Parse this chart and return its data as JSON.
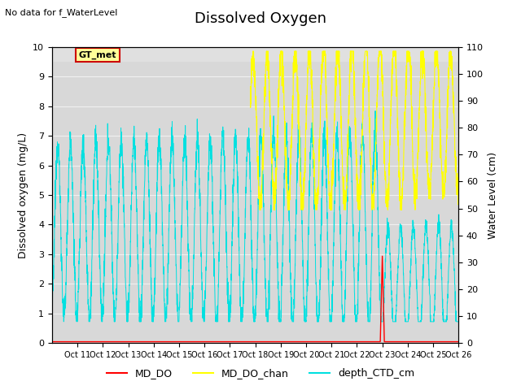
{
  "title": "Dissolved Oxygen",
  "subtitle": "No data for f_WaterLevel",
  "ylabel_left": "Dissolved oxygen (mg/L)",
  "ylabel_right": "Water Level (cm)",
  "ylim_left": [
    0.0,
    10.0
  ],
  "ylim_right": [
    0,
    110
  ],
  "color_MD_DO": "#ff0000",
  "color_MD_DO_chan": "#ffff00",
  "color_depth_CTD": "#00e0e0",
  "box_label": "GT_met",
  "box_facecolor": "#ffff99",
  "box_edgecolor": "#cc0000",
  "plot_bg_color": "#d8d8d8",
  "grid_color": "#f0f0f0",
  "title_fontsize": 13,
  "label_fontsize": 9,
  "tick_fontsize": 8,
  "xtick_labels": [
    "Oct 11",
    "Oct 12",
    "Oct 13",
    "Oct 14",
    "Oct 15",
    "Oct 16",
    "Oct 17",
    "Oct 18",
    "Oct 19",
    "Oct 20",
    "Oct 21",
    "Oct 22",
    "Oct 23",
    "Oct 24",
    "Oct 25",
    "Oct 26"
  ]
}
